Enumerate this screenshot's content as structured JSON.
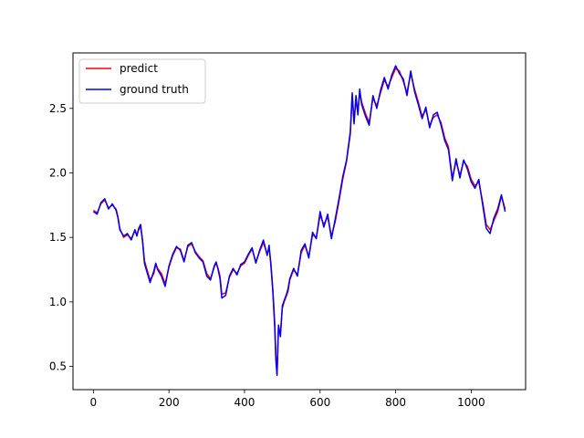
{
  "chart_data": {
    "type": "line",
    "title": "",
    "xlabel": "",
    "ylabel": "",
    "xlim": [
      -54,
      1144
    ],
    "ylim": [
      0.32,
      2.93
    ],
    "xticks": [
      0,
      200,
      400,
      600,
      800,
      1000
    ],
    "yticks": [
      0.5,
      1.0,
      1.5,
      2.0,
      2.5
    ],
    "xtick_labels": [
      "0",
      "200",
      "400",
      "600",
      "800",
      "1000"
    ],
    "ytick_labels": [
      "0.5",
      "1.0",
      "1.5",
      "2.0",
      "2.5"
    ],
    "grid": false,
    "legend_position": "upper-left",
    "series": [
      {
        "name": "predict",
        "color": "#ff0000",
        "x": [
          0,
          10,
          20,
          30,
          40,
          50,
          60,
          65,
          70,
          80,
          90,
          100,
          110,
          115,
          120,
          125,
          130,
          135,
          140,
          150,
          160,
          165,
          170,
          180,
          190,
          200,
          210,
          220,
          230,
          240,
          250,
          260,
          270,
          280,
          290,
          300,
          310,
          320,
          325,
          330,
          335,
          340,
          350,
          360,
          370,
          380,
          390,
          400,
          410,
          420,
          430,
          440,
          450,
          460,
          465,
          470,
          475,
          480,
          483,
          486,
          490,
          495,
          500,
          505,
          510,
          515,
          520,
          530,
          540,
          550,
          560,
          570,
          580,
          590,
          600,
          610,
          620,
          630,
          640,
          650,
          660,
          670,
          680,
          685,
          690,
          695,
          700,
          705,
          710,
          720,
          730,
          740,
          750,
          760,
          770,
          780,
          790,
          800,
          810,
          820,
          830,
          840,
          850,
          860,
          870,
          880,
          890,
          900,
          910,
          920,
          930,
          940,
          950,
          960,
          970,
          980,
          990,
          1000,
          1010,
          1020,
          1030,
          1040,
          1050,
          1060,
          1070,
          1080,
          1090
        ],
        "y": [
          1.71,
          1.69,
          1.76,
          1.79,
          1.73,
          1.75,
          1.72,
          1.66,
          1.57,
          1.5,
          1.52,
          1.49,
          1.55,
          1.52,
          1.56,
          1.58,
          1.48,
          1.32,
          1.27,
          1.17,
          1.22,
          1.29,
          1.26,
          1.22,
          1.14,
          1.27,
          1.36,
          1.42,
          1.41,
          1.32,
          1.43,
          1.45,
          1.39,
          1.35,
          1.32,
          1.22,
          1.18,
          1.27,
          1.3,
          1.26,
          1.2,
          1.06,
          1.07,
          1.19,
          1.25,
          1.22,
          1.28,
          1.3,
          1.36,
          1.41,
          1.31,
          1.39,
          1.46,
          1.37,
          1.42,
          1.3,
          1.1,
          0.84,
          0.6,
          0.44,
          0.8,
          0.76,
          0.95,
          1.0,
          1.04,
          1.08,
          1.17,
          1.25,
          1.21,
          1.38,
          1.44,
          1.35,
          1.52,
          1.5,
          1.67,
          1.6,
          1.66,
          1.51,
          1.62,
          1.78,
          1.95,
          2.09,
          2.3,
          2.6,
          2.4,
          2.56,
          2.47,
          2.63,
          2.55,
          2.46,
          2.39,
          2.58,
          2.52,
          2.62,
          2.72,
          2.67,
          2.74,
          2.81,
          2.79,
          2.71,
          2.62,
          2.77,
          2.65,
          2.55,
          2.44,
          2.49,
          2.37,
          2.43,
          2.45,
          2.39,
          2.27,
          2.2,
          1.96,
          2.09,
          1.98,
          2.09,
          2.05,
          1.95,
          1.9,
          1.93,
          1.78,
          1.6,
          1.56,
          1.63,
          1.7,
          1.82,
          1.72
        ]
      },
      {
        "name": "ground truth",
        "color": "#0000ff",
        "x": [
          0,
          10,
          20,
          30,
          40,
          50,
          60,
          65,
          70,
          80,
          90,
          100,
          110,
          115,
          120,
          125,
          130,
          135,
          140,
          150,
          160,
          165,
          170,
          180,
          190,
          200,
          210,
          220,
          230,
          240,
          250,
          260,
          270,
          280,
          290,
          300,
          310,
          320,
          325,
          330,
          335,
          340,
          350,
          360,
          370,
          380,
          390,
          400,
          410,
          420,
          430,
          440,
          450,
          460,
          465,
          470,
          475,
          480,
          483,
          486,
          490,
          495,
          500,
          505,
          510,
          515,
          520,
          530,
          540,
          550,
          560,
          570,
          580,
          590,
          600,
          610,
          620,
          630,
          640,
          650,
          660,
          670,
          680,
          685,
          690,
          695,
          700,
          705,
          710,
          720,
          730,
          740,
          750,
          760,
          770,
          780,
          790,
          800,
          810,
          820,
          830,
          840,
          850,
          860,
          870,
          880,
          890,
          900,
          910,
          920,
          930,
          940,
          950,
          960,
          970,
          980,
          990,
          1000,
          1010,
          1020,
          1030,
          1040,
          1050,
          1060,
          1070,
          1080,
          1090
        ],
        "y": [
          1.7,
          1.68,
          1.77,
          1.8,
          1.72,
          1.76,
          1.71,
          1.65,
          1.56,
          1.51,
          1.53,
          1.48,
          1.56,
          1.51,
          1.57,
          1.6,
          1.47,
          1.3,
          1.25,
          1.15,
          1.24,
          1.3,
          1.25,
          1.2,
          1.12,
          1.28,
          1.37,
          1.43,
          1.4,
          1.31,
          1.44,
          1.46,
          1.38,
          1.34,
          1.31,
          1.2,
          1.17,
          1.28,
          1.31,
          1.25,
          1.18,
          1.03,
          1.05,
          1.2,
          1.26,
          1.21,
          1.29,
          1.31,
          1.37,
          1.42,
          1.3,
          1.4,
          1.48,
          1.36,
          1.44,
          1.28,
          1.08,
          0.8,
          0.55,
          0.43,
          0.82,
          0.73,
          0.97,
          1.01,
          1.05,
          1.1,
          1.18,
          1.26,
          1.2,
          1.4,
          1.45,
          1.34,
          1.54,
          1.49,
          1.7,
          1.58,
          1.68,
          1.49,
          1.64,
          1.8,
          1.97,
          2.1,
          2.32,
          2.62,
          2.38,
          2.6,
          2.45,
          2.65,
          2.53,
          2.44,
          2.37,
          2.6,
          2.5,
          2.64,
          2.74,
          2.65,
          2.76,
          2.83,
          2.77,
          2.73,
          2.6,
          2.79,
          2.63,
          2.53,
          2.42,
          2.51,
          2.35,
          2.45,
          2.47,
          2.37,
          2.25,
          2.18,
          1.94,
          2.11,
          1.96,
          2.1,
          2.03,
          1.93,
          1.88,
          1.95,
          1.76,
          1.57,
          1.53,
          1.65,
          1.72,
          1.83,
          1.7
        ]
      }
    ]
  }
}
